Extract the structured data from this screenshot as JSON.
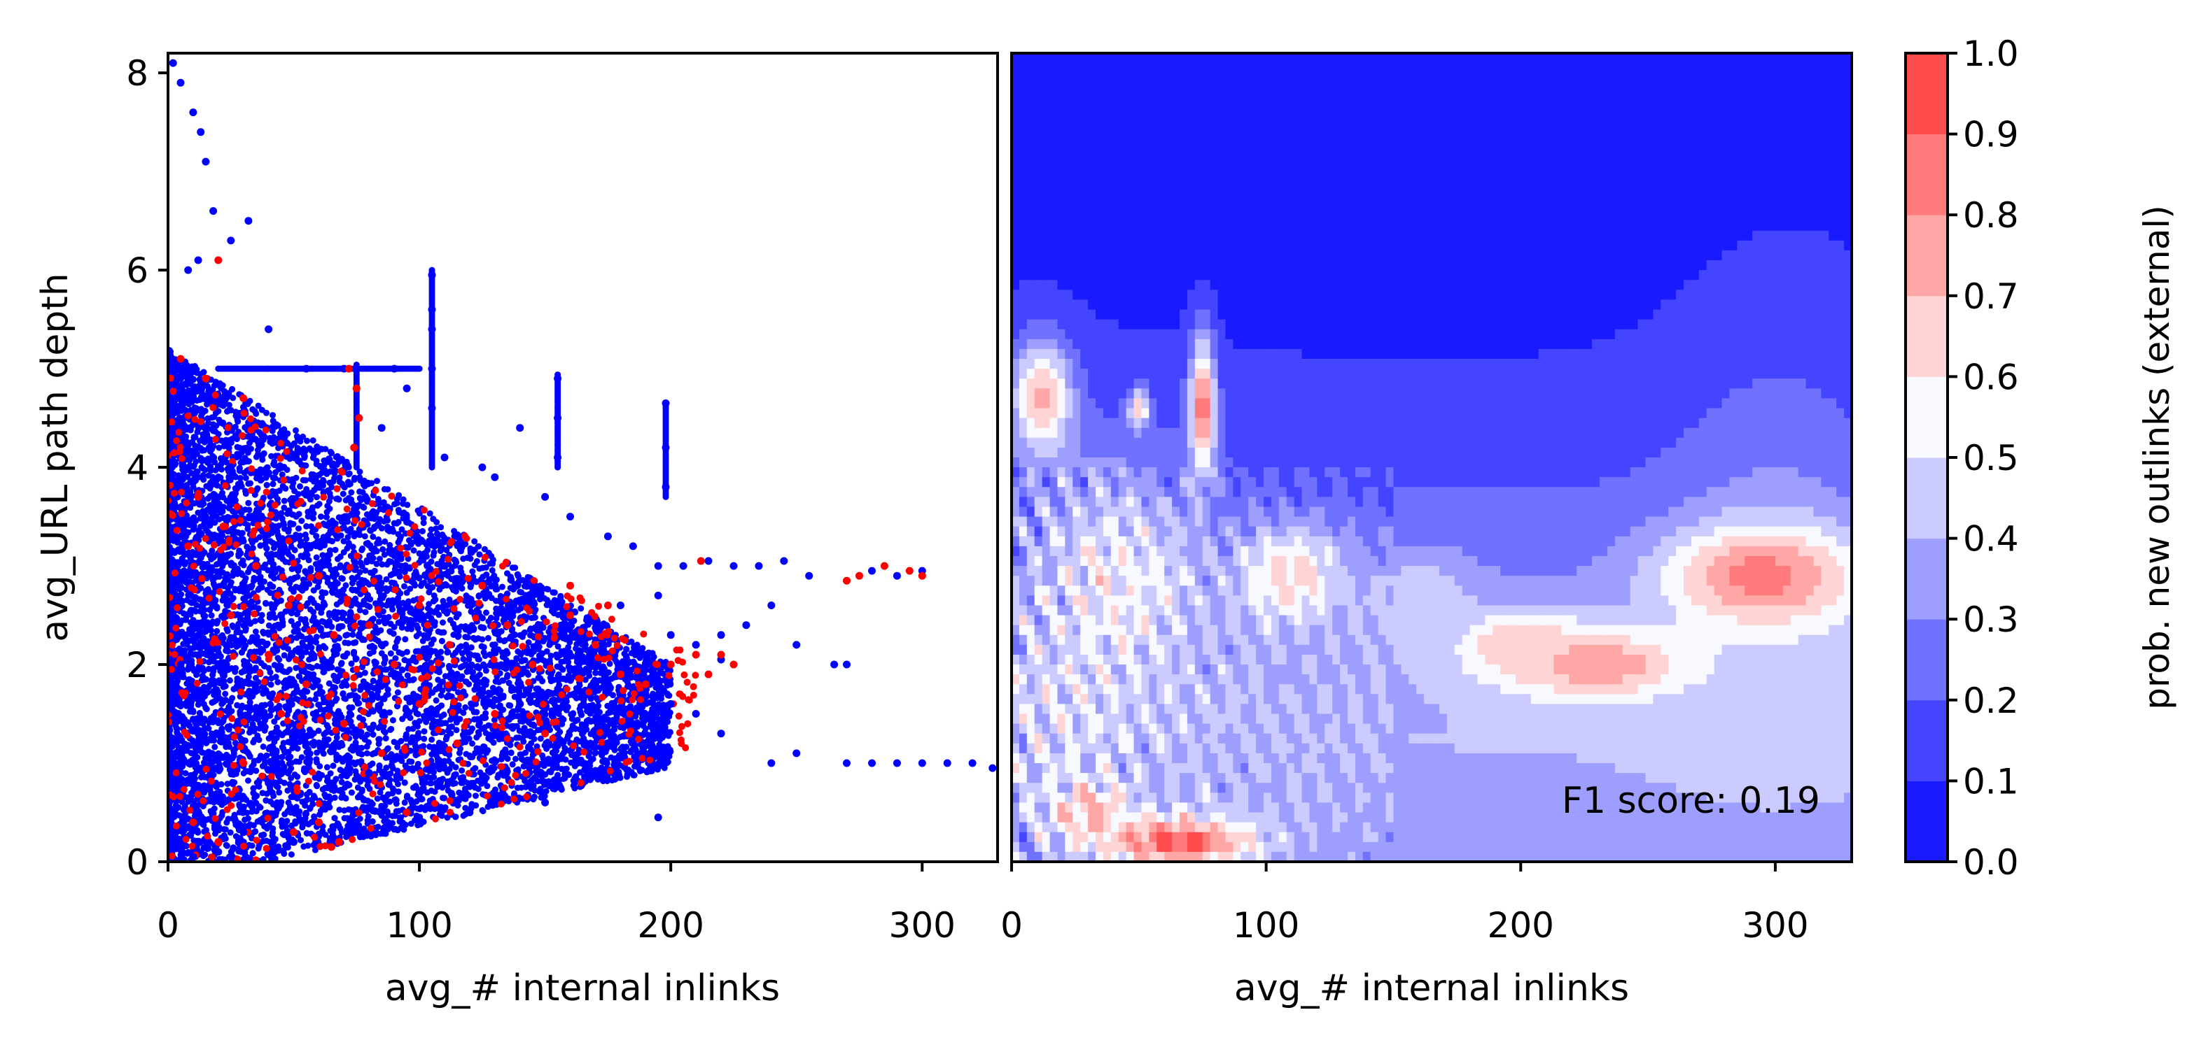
{
  "chart_data": [
    {
      "type": "scatter",
      "panel": "left",
      "xlabel": "avg_# internal inlinks",
      "ylabel": "avg_URL path depth",
      "xlim": [
        0,
        330
      ],
      "ylim": [
        0,
        8.2
      ],
      "xticks": [
        "0",
        "100",
        "200",
        "300"
      ],
      "yticks": [
        "0",
        "2",
        "4",
        "6",
        "8"
      ],
      "grid": false,
      "colors": {
        "negative": "#0000ff",
        "positive": "#ff0000"
      },
      "series": [
        {
          "color": "#0000ff",
          "points": [
            [
              2,
              8.1
            ],
            [
              5,
              7.9
            ],
            [
              10,
              7.6
            ],
            [
              13,
              7.4
            ],
            [
              15,
              7.1
            ],
            [
              18,
              6.6
            ],
            [
              25,
              6.3
            ],
            [
              32,
              6.5
            ],
            [
              12,
              6.1
            ],
            [
              8,
              6.0
            ],
            [
              105,
              5.95
            ],
            [
              105,
              5.6
            ],
            [
              105,
              5.4
            ],
            [
              105,
              5.0
            ],
            [
              105,
              4.6
            ],
            [
              140,
              4.4
            ],
            [
              155,
              4.9
            ],
            [
              155,
              4.5
            ],
            [
              155,
              4.1
            ],
            [
              198,
              4.65
            ],
            [
              198,
              4.2
            ],
            [
              198,
              3.8
            ],
            [
              40,
              5.4
            ],
            [
              55,
              5.0
            ],
            [
              70,
              5.0
            ],
            [
              90,
              5.0
            ],
            [
              95,
              4.8
            ],
            [
              85,
              4.4
            ],
            [
              110,
              4.1
            ],
            [
              125,
              4.0
            ],
            [
              130,
              3.9
            ],
            [
              150,
              3.7
            ],
            [
              160,
              3.5
            ],
            [
              175,
              3.3
            ],
            [
              185,
              3.2
            ],
            [
              195,
              3.0
            ],
            [
              205,
              3.0
            ],
            [
              215,
              3.05
            ],
            [
              225,
              3.0
            ],
            [
              235,
              3.0
            ],
            [
              245,
              3.05
            ],
            [
              255,
              2.9
            ],
            [
              240,
              2.6
            ],
            [
              230,
              2.4
            ],
            [
              220,
              2.3
            ],
            [
              210,
              2.2
            ],
            [
              220,
              2.05
            ],
            [
              250,
              2.2
            ],
            [
              265,
              2.0
            ],
            [
              270,
              2.0
            ],
            [
              280,
              2.95
            ],
            [
              290,
              2.9
            ],
            [
              300,
              2.95
            ],
            [
              200,
              1.6
            ],
            [
              210,
              1.5
            ],
            [
              220,
              1.3
            ],
            [
              240,
              1.0
            ],
            [
              250,
              1.1
            ],
            [
              270,
              1.0
            ],
            [
              280,
              1.0
            ],
            [
              290,
              1.0
            ],
            [
              300,
              1.0
            ],
            [
              310,
              1.0
            ],
            [
              320,
              1.0
            ],
            [
              328,
              0.95
            ],
            [
              195,
              0.45
            ],
            [
              150,
              0.6
            ],
            [
              120,
              0.5
            ],
            [
              100,
              0.7
            ],
            [
              80,
              0.9
            ],
            [
              60,
              1.2
            ],
            [
              40,
              0.8
            ],
            [
              30,
              0.3
            ],
            [
              20,
              0.1
            ],
            [
              10,
              0.05
            ],
            [
              50,
              0.2
            ],
            [
              5,
              2.0
            ],
            [
              15,
              3.0
            ],
            [
              25,
              4.0
            ],
            [
              35,
              3.5
            ],
            [
              45,
              2.5
            ],
            [
              55,
              3.2
            ],
            [
              65,
              2.8
            ],
            [
              75,
              3.6
            ],
            [
              85,
              2.2
            ],
            [
              95,
              2.6
            ],
            [
              110,
              3.0
            ],
            [
              120,
              2.1
            ],
            [
              130,
              2.8
            ],
            [
              140,
              1.6
            ],
            [
              160,
              2.4
            ],
            [
              170,
              1.8
            ],
            [
              180,
              2.6
            ],
            [
              190,
              1.2
            ],
            [
              165,
              1.0
            ],
            [
              175,
              1.2
            ],
            [
              185,
              1.4
            ],
            [
              190,
              2.0
            ],
            [
              200,
              2.3
            ],
            [
              195,
              2.7
            ]
          ]
        },
        {
          "color": "#ff0000",
          "points": [
            [
              5,
              5.1
            ],
            [
              15,
              4.9
            ],
            [
              20,
              6.1
            ],
            [
              72,
              5.0
            ],
            [
              75,
              4.8
            ],
            [
              76,
              4.5
            ],
            [
              74,
              4.2
            ],
            [
              30,
              4.7
            ],
            [
              12,
              3.7
            ],
            [
              8,
              3.2
            ],
            [
              22,
              3.4
            ],
            [
              35,
              3.0
            ],
            [
              48,
              2.6
            ],
            [
              60,
              2.9
            ],
            [
              66,
              2.3
            ],
            [
              80,
              2.4
            ],
            [
              90,
              2.0
            ],
            [
              100,
              2.6
            ],
            [
              112,
              2.2
            ],
            [
              125,
              2.8
            ],
            [
              135,
              2.4
            ],
            [
              145,
              2.0
            ],
            [
              160,
              2.5
            ],
            [
              170,
              2.2
            ],
            [
              180,
              1.9
            ],
            [
              190,
              1.8
            ],
            [
              200,
              2.0
            ],
            [
              210,
              2.1
            ],
            [
              215,
              1.9
            ],
            [
              220,
              2.1
            ],
            [
              212,
              3.05
            ],
            [
              225,
              2.0
            ],
            [
              270,
              2.85
            ],
            [
              275,
              2.9
            ],
            [
              285,
              3.0
            ],
            [
              295,
              2.95
            ],
            [
              300,
              2.9
            ],
            [
              50,
              0.3
            ],
            [
              65,
              0.15
            ],
            [
              68,
              0.2
            ],
            [
              60,
              0.4
            ],
            [
              95,
              0.5
            ],
            [
              10,
              0.4
            ],
            [
              20,
              0.2
            ],
            [
              30,
              1.0
            ],
            [
              45,
              1.5
            ],
            [
              55,
              1.8
            ],
            [
              70,
              1.4
            ],
            [
              85,
              1.1
            ],
            [
              40,
              2.1
            ],
            [
              25,
              2.5
            ],
            [
              100,
              1.6
            ],
            [
              115,
              1.2
            ],
            [
              130,
              1.5
            ],
            [
              150,
              1.3
            ],
            [
              175,
              2.6
            ],
            [
              160,
              2.8
            ]
          ]
        }
      ]
    },
    {
      "type": "heatmap",
      "panel": "right",
      "xlabel": "avg_# internal inlinks",
      "xlim": [
        0,
        330
      ],
      "ylim": [
        0,
        8.2
      ],
      "xticks": [
        "0",
        "100",
        "200",
        "300"
      ],
      "grid": false,
      "annotation": "F1 score: 0.19",
      "hotspots": [
        {
          "x": 295,
          "y": 2.9,
          "sx": 38,
          "sy": 0.5,
          "p": 0.85
        },
        {
          "x": 230,
          "y": 2.0,
          "sx": 35,
          "sy": 0.35,
          "p": 0.8
        },
        {
          "x": 200,
          "y": 2.2,
          "sx": 25,
          "sy": 0.35,
          "p": 0.7
        },
        {
          "x": 65,
          "y": 0.2,
          "sx": 30,
          "sy": 0.25,
          "p": 0.92
        },
        {
          "x": 30,
          "y": 0.5,
          "sx": 15,
          "sy": 0.3,
          "p": 0.72
        },
        {
          "x": 75,
          "y": 4.6,
          "sx": 5,
          "sy": 0.7,
          "p": 0.88
        },
        {
          "x": 12,
          "y": 4.7,
          "sx": 12,
          "sy": 0.6,
          "p": 0.72
        },
        {
          "x": 50,
          "y": 4.6,
          "sx": 4,
          "sy": 0.2,
          "p": 0.7
        },
        {
          "x": 40,
          "y": 2.8,
          "sx": 35,
          "sy": 1.2,
          "p": 0.55
        },
        {
          "x": 110,
          "y": 2.9,
          "sx": 20,
          "sy": 0.5,
          "p": 0.65
        },
        {
          "x": 160,
          "y": 2.6,
          "sx": 20,
          "sy": 0.5,
          "p": 0.5
        },
        {
          "x": 20,
          "y": 1.5,
          "sx": 20,
          "sy": 1.0,
          "p": 0.5
        }
      ],
      "colorbar": {
        "label": "prob. new outlinks (external)",
        "levels": [
          0.0,
          0.1,
          0.2,
          0.3,
          0.4,
          0.5,
          0.6,
          0.7,
          0.8,
          0.9,
          1.0
        ],
        "tick_labels": [
          "0.0",
          "0.1",
          "0.2",
          "0.3",
          "0.4",
          "0.5",
          "0.6",
          "0.7",
          "0.8",
          "0.9",
          "1.0"
        ],
        "colors": [
          "#1a1aff",
          "#4545ff",
          "#7171ff",
          "#9e9eff",
          "#cbcbff",
          "#f8f8ff",
          "#ffd4d4",
          "#ffa7a7",
          "#ff7a7a",
          "#ff4c4c",
          "#ff1d1d"
        ]
      }
    }
  ]
}
